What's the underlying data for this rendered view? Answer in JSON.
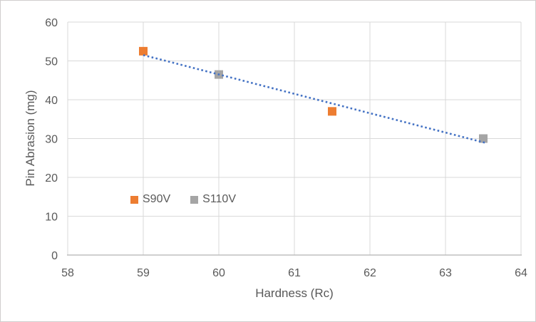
{
  "chart_data": {
    "type": "scatter",
    "title": "",
    "xlabel": "Hardness (Rc)",
    "ylabel": "Pin Abrasion (mg)",
    "xlim": [
      58,
      64
    ],
    "ylim": [
      0,
      60
    ],
    "xticks": [
      58,
      59,
      60,
      61,
      62,
      63,
      64
    ],
    "yticks": [
      0,
      10,
      20,
      30,
      40,
      50,
      60
    ],
    "grid": true,
    "legend_position": "inside-plot-lower-left",
    "series": [
      {
        "name": "S90V",
        "color": "#ED7D31",
        "marker": "square",
        "points": [
          [
            59,
            52.5
          ],
          [
            61.5,
            37
          ]
        ]
      },
      {
        "name": "S110V",
        "color": "#A5A5A5",
        "marker": "square",
        "points": [
          [
            60,
            46.5
          ],
          [
            63.5,
            30
          ]
        ]
      }
    ],
    "trendline": {
      "color": "#4472C4",
      "style": "dotted",
      "x": [
        59,
        63.55
      ],
      "y": [
        51.5,
        28.8
      ]
    }
  },
  "colors": {
    "gridline": "#D9D9D9",
    "axis_line": "#BFBFBF",
    "tick_text": "#595959",
    "frame_border": "#D0CECE",
    "background": "#FFFFFF"
  }
}
